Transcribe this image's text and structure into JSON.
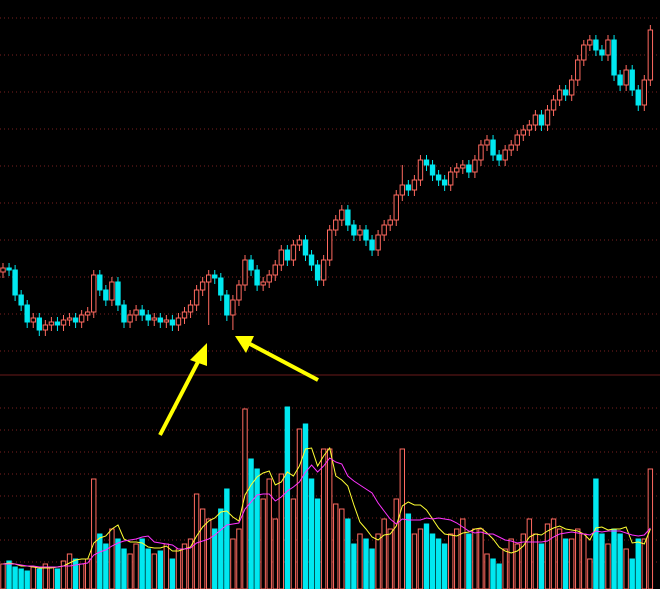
{
  "chart_data": {
    "type": "candlestick",
    "open": [
      128,
      132,
      130,
      105,
      95,
      78,
      82,
      70,
      75,
      78,
      75,
      80,
      82,
      78,
      85,
      88,
      125,
      110,
      100,
      118,
      95,
      78,
      85,
      90,
      85,
      80,
      82,
      78,
      80,
      75,
      82,
      88,
      95,
      110,
      118,
      125,
      122,
      105,
      85,
      100,
      115,
      140,
      130,
      115,
      118,
      125,
      135,
      150,
      140,
      155,
      160,
      145,
      135,
      120,
      140,
      170,
      180,
      190,
      175,
      165,
      170,
      160,
      150,
      165,
      175,
      180,
      205,
      215,
      210,
      220,
      240,
      235,
      225,
      220,
      215,
      228,
      232,
      235,
      228,
      240,
      255,
      260,
      245,
      240,
      250,
      255,
      265,
      270,
      275,
      285,
      275,
      290,
      300,
      310,
      305,
      320,
      340,
      355,
      360,
      350,
      345,
      360,
      325,
      315,
      330,
      310,
      295,
      320
    ],
    "high": [
      137,
      137,
      135,
      110,
      100,
      87,
      87,
      80,
      83,
      83,
      85,
      87,
      87,
      90,
      93,
      130,
      130,
      115,
      123,
      123,
      100,
      90,
      95,
      95,
      90,
      87,
      87,
      85,
      85,
      87,
      93,
      100,
      115,
      123,
      130,
      130,
      127,
      110,
      105,
      120,
      145,
      145,
      135,
      123,
      130,
      140,
      155,
      155,
      160,
      165,
      165,
      150,
      140,
      145,
      175,
      185,
      195,
      195,
      180,
      175,
      175,
      165,
      170,
      180,
      185,
      210,
      235,
      220,
      225,
      245,
      245,
      240,
      230,
      225,
      233,
      237,
      240,
      240,
      245,
      260,
      265,
      265,
      250,
      255,
      260,
      270,
      275,
      280,
      290,
      290,
      295,
      305,
      315,
      315,
      325,
      345,
      360,
      365,
      365,
      355,
      365,
      365,
      330,
      335,
      335,
      315,
      325,
      375
    ],
    "low": [
      122,
      124,
      99,
      89,
      72,
      72,
      64,
      64,
      69,
      69,
      69,
      74,
      72,
      72,
      79,
      82,
      104,
      94,
      94,
      89,
      72,
      72,
      79,
      79,
      74,
      74,
      72,
      72,
      69,
      69,
      76,
      82,
      89,
      104,
      75,
      116,
      99,
      79,
      70,
      94,
      109,
      124,
      109,
      109,
      112,
      119,
      129,
      134,
      134,
      149,
      139,
      129,
      114,
      114,
      134,
      164,
      174,
      169,
      159,
      159,
      154,
      144,
      144,
      159,
      169,
      174,
      199,
      204,
      204,
      214,
      229,
      219,
      214,
      209,
      209,
      222,
      226,
      222,
      222,
      234,
      249,
      239,
      234,
      234,
      244,
      249,
      259,
      264,
      269,
      269,
      269,
      284,
      294,
      299,
      299,
      314,
      334,
      349,
      344,
      339,
      339,
      319,
      309,
      309,
      304,
      289,
      289,
      314
    ],
    "close": [
      132,
      130,
      105,
      95,
      78,
      82,
      70,
      75,
      78,
      75,
      80,
      82,
      78,
      85,
      88,
      125,
      110,
      100,
      118,
      95,
      78,
      85,
      90,
      85,
      80,
      82,
      78,
      80,
      75,
      82,
      88,
      95,
      110,
      118,
      125,
      122,
      105,
      85,
      100,
      115,
      140,
      130,
      115,
      118,
      125,
      135,
      150,
      140,
      155,
      160,
      145,
      135,
      120,
      140,
      170,
      180,
      190,
      175,
      165,
      170,
      160,
      150,
      165,
      175,
      180,
      205,
      215,
      210,
      220,
      240,
      235,
      225,
      220,
      215,
      228,
      232,
      235,
      228,
      240,
      255,
      260,
      245,
      240,
      250,
      255,
      265,
      270,
      275,
      285,
      275,
      290,
      300,
      310,
      305,
      320,
      340,
      355,
      360,
      350,
      345,
      360,
      325,
      315,
      330,
      310,
      295,
      320,
      370
    ],
    "volume": [
      25,
      28,
      22,
      20,
      18,
      22,
      20,
      25,
      22,
      20,
      28,
      35,
      30,
      25,
      30,
      110,
      55,
      45,
      60,
      50,
      40,
      35,
      45,
      50,
      40,
      35,
      38,
      45,
      30,
      40,
      45,
      50,
      95,
      80,
      70,
      60,
      80,
      100,
      50,
      60,
      180,
      130,
      120,
      90,
      110,
      70,
      115,
      182,
      90,
      160,
      165,
      110,
      90,
      140,
      140,
      85,
      80,
      70,
      45,
      55,
      50,
      40,
      55,
      70,
      60,
      90,
      140,
      75,
      55,
      60,
      65,
      55,
      50,
      45,
      55,
      60,
      70,
      55,
      60,
      60,
      35,
      30,
      25,
      40,
      50,
      45,
      55,
      70,
      55,
      45,
      65,
      70,
      60,
      50,
      50,
      60,
      55,
      30,
      110,
      55,
      45,
      60,
      55,
      40,
      30,
      50,
      50,
      120
    ],
    "volume_ma": [
      {
        "color": "#ffff33",
        "values": [
          25,
          26,
          25,
          23,
          23,
          22,
          21,
          21,
          21,
          22,
          23,
          26,
          29,
          30,
          30,
          46,
          51,
          53,
          60,
          64,
          50,
          47,
          47,
          46,
          42,
          41,
          41,
          43,
          38,
          38,
          40,
          42,
          53,
          62,
          68,
          71,
          77,
          78,
          72,
          68,
          94,
          104,
          112,
          116,
          118,
          104,
          107,
          117,
          113,
          123,
          140,
          141,
          123,
          133,
          141,
          113,
          109,
          103,
          84,
          67,
          60,
          52,
          49,
          54,
          55,
          63,
          83,
          87,
          84,
          84,
          79,
          70,
          61,
          55,
          54,
          53,
          56,
          57,
          60,
          61,
          56,
          50,
          42,
          38,
          36,
          38,
          43,
          52,
          55,
          54,
          58,
          61,
          63,
          60,
          59,
          58,
          55,
          49,
          61,
          62,
          59,
          60,
          60,
          62,
          46,
          47,
          45,
          60
        ]
      },
      {
        "color": "#ff33ff",
        "values": [
          25,
          25,
          25,
          24,
          23,
          23,
          22,
          22,
          22,
          22,
          23,
          23,
          24,
          25,
          26,
          34,
          37,
          39,
          43,
          46,
          48,
          49,
          50,
          52,
          53,
          47,
          46,
          45,
          44,
          40,
          40,
          41,
          46,
          48,
          50,
          54,
          59,
          64,
          65,
          66,
          80,
          87,
          94,
          95,
          95,
          88,
          92,
          98,
          102,
          107,
          117,
          124,
          117,
          123,
          131,
          127,
          125,
          113,
          108,
          104,
          100,
          96,
          86,
          78,
          70,
          65,
          70,
          69,
          69,
          69,
          71,
          70,
          71,
          70,
          69,
          66,
          62,
          58,
          56,
          57,
          55,
          55,
          52,
          49,
          48,
          46,
          47,
          47,
          47,
          47,
          48,
          52,
          55,
          56,
          57,
          56,
          55,
          54,
          58,
          57,
          58,
          58,
          58,
          56,
          54,
          53,
          54,
          61
        ]
      }
    ],
    "up_color": "#ff6a60",
    "down_color": "#00e8f0",
    "ylim": [
      25,
      400
    ],
    "volume_lim": [
      0,
      214
    ]
  }
}
